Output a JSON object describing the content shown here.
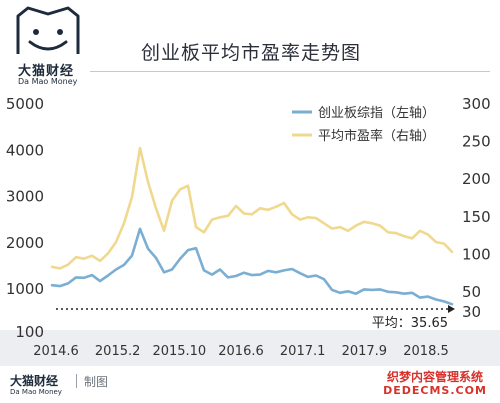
{
  "brand": {
    "name_cn": "大猫财经",
    "name_en": "Da Mao Money",
    "made_by": "制图"
  },
  "watermark": {
    "cn": "织梦内容管理系统",
    "en": "DEDECMS.COM"
  },
  "colors": {
    "left_series": "#7aaed2",
    "right_series": "#f0d98e",
    "text": "#333333",
    "footer_band": "#eceef1"
  },
  "chart_data": {
    "type": "line",
    "title": "创业板平均市盈率走势图",
    "x_ticks": [
      "2014.6",
      "2015.2",
      "2015.10",
      "2016.6",
      "2017.1",
      "2017.9",
      "2018.5"
    ],
    "left_axis": {
      "ticks": [
        "100",
        "1000",
        "2000",
        "3000",
        "4000",
        "5000"
      ],
      "ylim": [
        100,
        5000
      ]
    },
    "right_axis": {
      "ticks": [
        "30",
        "50",
        "100",
        "150",
        "200",
        "250",
        "300"
      ],
      "ylim": [
        30,
        300
      ]
    },
    "legend_position": "top-right",
    "series": [
      {
        "name": "创业板综指（左轴）",
        "axis": "left",
        "values": [
          1060,
          1040,
          1100,
          1230,
          1220,
          1280,
          1150,
          1270,
          1400,
          1500,
          1700,
          2280,
          1850,
          1650,
          1340,
          1400,
          1630,
          1820,
          1860,
          1380,
          1290,
          1400,
          1230,
          1260,
          1330,
          1280,
          1290,
          1370,
          1340,
          1380,
          1410,
          1320,
          1240,
          1270,
          1190,
          960,
          900,
          930,
          880,
          970,
          960,
          970,
          920,
          910,
          880,
          900,
          800,
          820,
          760,
          720,
          660
        ]
      },
      {
        "name": "平均市盈率（右轴）",
        "axis": "right",
        "values": [
          82,
          80,
          85,
          95,
          93,
          97,
          90,
          100,
          115,
          140,
          175,
          240,
          195,
          160,
          130,
          170,
          185,
          190,
          135,
          128,
          145,
          148,
          150,
          163,
          153,
          152,
          160,
          158,
          162,
          167,
          152,
          145,
          148,
          147,
          140,
          133,
          135,
          130,
          137,
          142,
          140,
          137,
          128,
          127,
          123,
          120,
          130,
          125,
          115,
          113,
          102
        ]
      }
    ],
    "reference": {
      "label": "平均：35.65",
      "value": 35.65,
      "axis": "right",
      "style": "dotted"
    }
  }
}
